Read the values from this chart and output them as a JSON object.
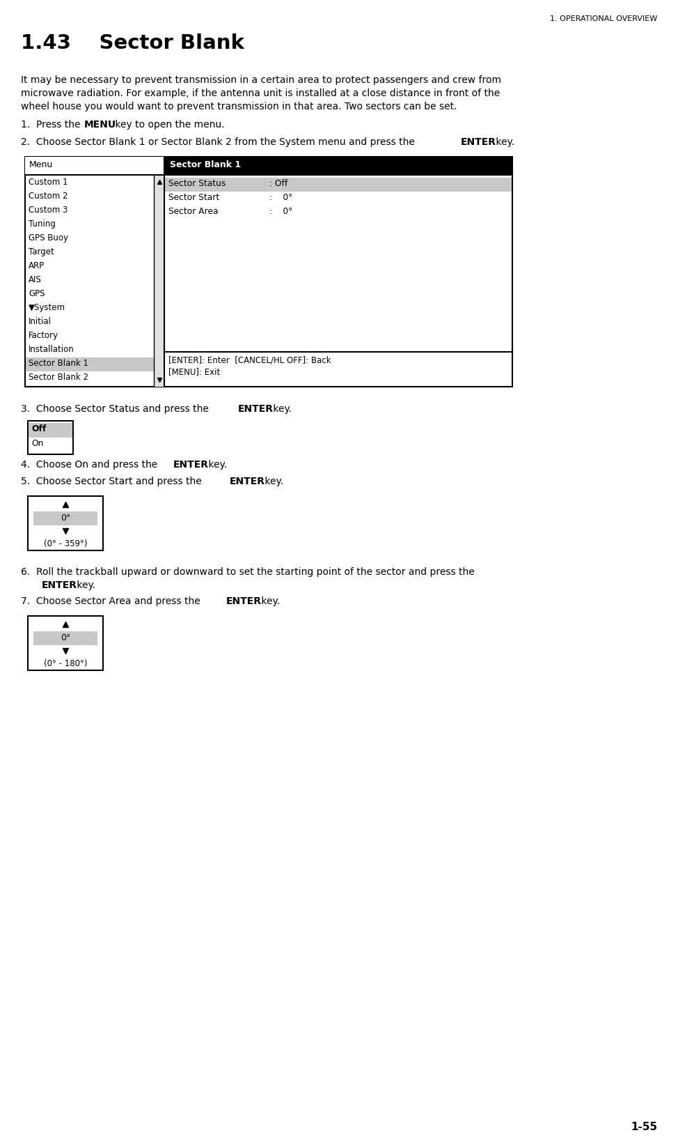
{
  "page_header": "1. OPERATIONAL OVERVIEW",
  "section_number": "1.43",
  "section_title": "Sector Blank",
  "body_line1": "It may be necessary to prevent transmission in a certain area to protect passengers and crew from",
  "body_line2": "microwave radiation. For example, if the antenna unit is installed at a close distance in front of the",
  "body_line3": "wheel house you would want to prevent transmission in that area. Two sectors can be set.",
  "menu_header_left": "Menu",
  "menu_header_right": "Sector Blank 1",
  "menu_left_items": [
    "Custom 1",
    "Custom 2",
    "Custom 3",
    "Tuning",
    "GPS Buoy",
    "Target",
    "ARP",
    "AIS",
    "GPS",
    "▼System",
    "Initial",
    "Factory",
    "Installation",
    "Sector Blank 1",
    "Sector Blank 2"
  ],
  "menu_right_items": [
    {
      "label": "Sector Status",
      "value": ": Off",
      "highlighted": true
    },
    {
      "label": "Sector Start",
      "value": ":    0°",
      "highlighted": false
    },
    {
      "label": "Sector Area",
      "value": ":    0°",
      "highlighted": false
    }
  ],
  "menu_footer_line1": "[ENTER]: Enter  [CANCEL/HL OFF]: Back",
  "menu_footer_line2": "[MENU]: Exit",
  "off_on_items": [
    "Off",
    "On"
  ],
  "off_on_highlighted": 0,
  "spinner1_value": "0°",
  "spinner1_range": "(0° - 359°)",
  "spinner2_value": "0°",
  "spinner2_range": "(0° - 180°)",
  "page_number": "1-55",
  "bg_color": "#ffffff",
  "header_bg": "#000000",
  "header_fg": "#ffffff",
  "highlight_bg": "#c8c8c8",
  "selected_item_bg": "#c8c8c8",
  "border_color": "#000000",
  "text_color": "#000000"
}
